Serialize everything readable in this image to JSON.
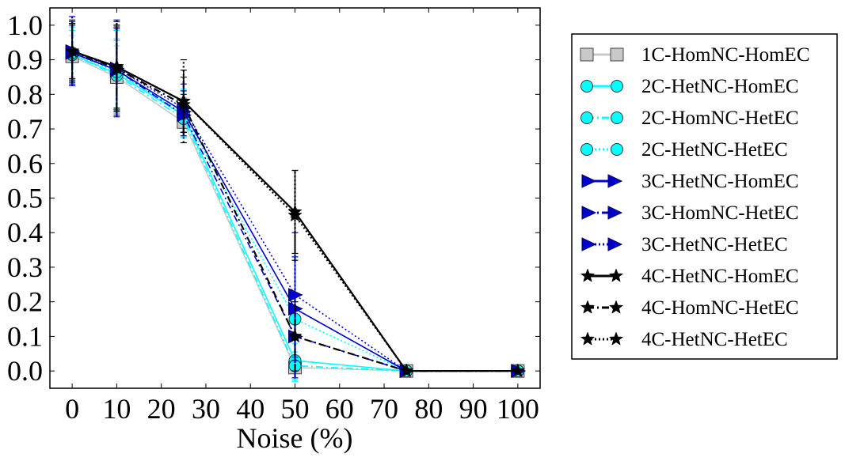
{
  "chart_data": {
    "type": "line",
    "title": "",
    "xlabel": "Noise (%)",
    "ylabel": "",
    "xlim": [
      -5,
      105
    ],
    "ylim": [
      -0.05,
      1.05
    ],
    "xticks": [
      "0",
      "10",
      "20",
      "30",
      "40",
      "50",
      "60",
      "70",
      "80",
      "90",
      "100"
    ],
    "xtick_values": [
      0,
      10,
      20,
      30,
      40,
      50,
      60,
      70,
      80,
      90,
      100
    ],
    "yticks": [
      "0.0",
      "0.1",
      "0.2",
      "0.3",
      "0.4",
      "0.5",
      "0.6",
      "0.7",
      "0.8",
      "0.9",
      "1.0"
    ],
    "ytick_values": [
      0.0,
      0.1,
      0.2,
      0.3,
      0.4,
      0.5,
      0.6,
      0.7,
      0.8,
      0.9,
      1.0
    ],
    "legend_position": "outside-right",
    "x": [
      0,
      10,
      25,
      50,
      75,
      100
    ],
    "series": [
      {
        "name": "1C-HomNC-HomEC",
        "color": "#c8c8c8",
        "marker": "square",
        "dash": "solid",
        "values": [
          0.91,
          0.85,
          0.72,
          0.01,
          0.0,
          0.0
        ],
        "err": [
          0.06,
          0.09,
          0.04,
          0.03,
          0.0,
          0.0
        ]
      },
      {
        "name": "2C-HetNC-HomEC",
        "color": "#00ffff",
        "marker": "circle",
        "dash": "solid",
        "values": [
          0.915,
          0.86,
          0.74,
          0.03,
          0.0,
          0.0
        ],
        "err": [
          0.07,
          0.1,
          0.05,
          0.05,
          0.0,
          0.0
        ]
      },
      {
        "name": "2C-HomNC-HetEC",
        "color": "#00ffff",
        "marker": "circle",
        "dash": "dashdot",
        "values": [
          0.915,
          0.855,
          0.73,
          0.015,
          0.0,
          0.0
        ],
        "err": [
          0.08,
          0.1,
          0.05,
          0.04,
          0.0,
          0.0
        ]
      },
      {
        "name": "2C-HetNC-HetEC",
        "color": "#00ffff",
        "marker": "circle",
        "dash": "dotted",
        "values": [
          0.92,
          0.865,
          0.745,
          0.15,
          0.0,
          0.0
        ],
        "err": [
          0.09,
          0.12,
          0.07,
          0.18,
          0.0,
          0.0
        ]
      },
      {
        "name": "3C-HetNC-HomEC",
        "color": "#0000cc",
        "marker": "triangle-right",
        "dash": "solid",
        "values": [
          0.92,
          0.87,
          0.75,
          0.18,
          0.0,
          0.0
        ],
        "err": [
          0.08,
          0.12,
          0.06,
          0.15,
          0.0,
          0.0
        ]
      },
      {
        "name": "3C-HomNC-HetEC",
        "color": "#0000cc",
        "marker": "triangle-right",
        "dash": "dashdot",
        "values": [
          0.92,
          0.87,
          0.74,
          0.1,
          0.0,
          0.0
        ],
        "err": [
          0.09,
          0.13,
          0.06,
          0.12,
          0.0,
          0.0
        ]
      },
      {
        "name": "3C-HetNC-HetEC",
        "color": "#0000cc",
        "marker": "triangle-right",
        "dash": "dotted",
        "values": [
          0.925,
          0.875,
          0.76,
          0.22,
          0.0,
          0.0
        ],
        "err": [
          0.1,
          0.14,
          0.07,
          0.18,
          0.0,
          0.0
        ]
      },
      {
        "name": "4C-HetNC-HomEC",
        "color": "#000000",
        "marker": "star",
        "dash": "solid",
        "values": [
          0.925,
          0.88,
          0.78,
          0.46,
          0.0,
          0.0
        ],
        "err": [
          0.08,
          0.12,
          0.09,
          0.12,
          0.0,
          0.0
        ]
      },
      {
        "name": "4C-HomNC-HetEC",
        "color": "#000000",
        "marker": "star",
        "dash": "dashdot",
        "values": [
          0.925,
          0.875,
          0.77,
          0.1,
          0.0,
          0.0
        ],
        "err": [
          0.08,
          0.12,
          0.08,
          0.1,
          0.0,
          0.0
        ]
      },
      {
        "name": "4C-HetNC-HetEC",
        "color": "#000000",
        "marker": "star",
        "dash": "dotted",
        "values": [
          0.925,
          0.88,
          0.78,
          0.45,
          0.0,
          0.0
        ],
        "err": [
          0.09,
          0.13,
          0.12,
          0.13,
          0.0,
          0.0
        ]
      }
    ]
  }
}
